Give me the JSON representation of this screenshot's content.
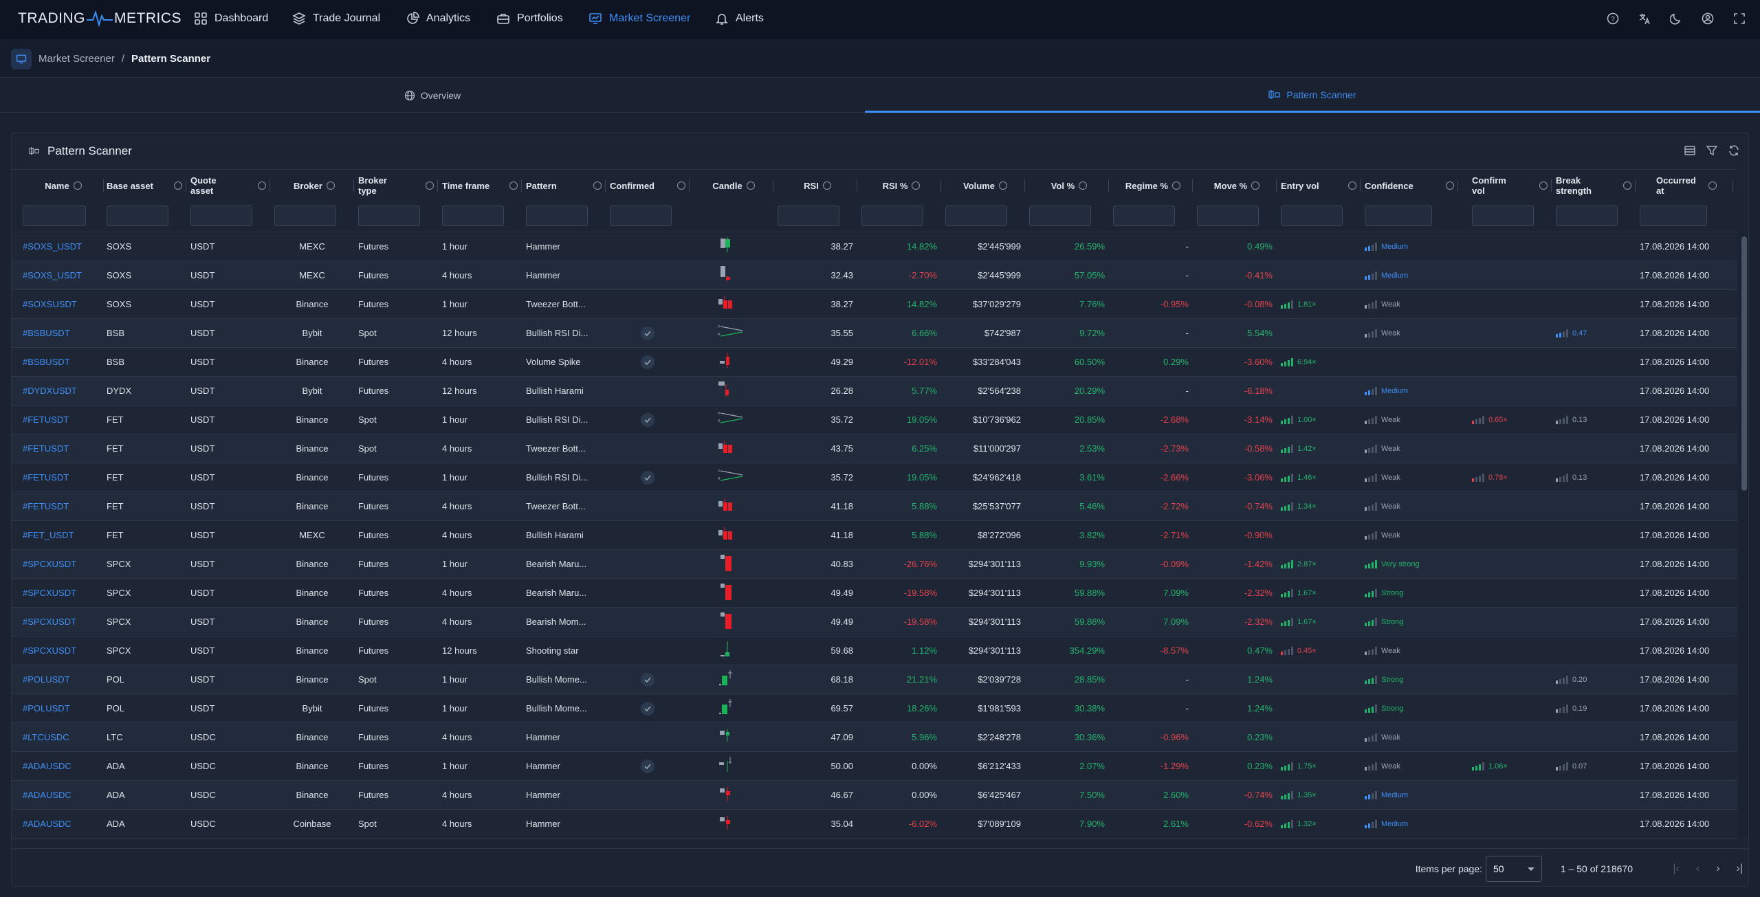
{
  "app": {
    "logo_left": "TRADING",
    "logo_right": "METRICS"
  },
  "nav": [
    {
      "label": "Dashboard",
      "icon": "dashboard-icon"
    },
    {
      "label": "Trade Journal",
      "icon": "layers-icon"
    },
    {
      "label": "Analytics",
      "icon": "pie-chart-icon"
    },
    {
      "label": "Portfolios",
      "icon": "portfolio-icon"
    },
    {
      "label": "Market Screener",
      "icon": "screener-icon",
      "active": true
    },
    {
      "label": "Alerts",
      "icon": "bell-icon"
    }
  ],
  "breadcrumb": {
    "parent": "Market Screener",
    "sep": "/",
    "current": "Pattern Scanner"
  },
  "tabs": [
    {
      "label": "Overview"
    },
    {
      "label": "Pattern Scanner",
      "active": true
    }
  ],
  "card": {
    "title": "Pattern Scanner"
  },
  "columns": [
    "Name",
    "Base asset",
    "Quote asset",
    "Broker",
    "Broker type",
    "Time frame",
    "Pattern",
    "Confirmed",
    "Candle",
    "RSI",
    "RSI %",
    "Volume",
    "Vol %",
    "Regime %",
    "Move %",
    "Entry vol",
    "Confidence",
    "Confirm vol",
    "Break strength",
    "Occurred at"
  ],
  "colors": {
    "accent": "#3d8ef5",
    "positive": "#22b36b",
    "negative": "#e6404a",
    "medium": "#3d8ef5"
  },
  "rows": [
    {
      "name": "#SOXS_USDT",
      "base": "SOXS",
      "quote": "USDT",
      "broker": "MEXC",
      "btype": "Futures",
      "tf": "1 hour",
      "pattern": "Hammer",
      "confirmed": false,
      "rsi": "38.27",
      "rsip": "14.82%",
      "rsip_s": "pos",
      "vol": "$2'445'999",
      "volp": "26.59%",
      "volp_s": "pos",
      "regime": "-",
      "regime_s": "",
      "move": "0.49%",
      "move_s": "pos",
      "entry": "",
      "entry_lvl": 0,
      "conf": "Medium",
      "conf_lvl": 2,
      "cvol": "",
      "cvol_lvl": 0,
      "brk": "",
      "brk_lvl": 0,
      "at": "17.08.2026 14:00",
      "candle": "hammer-up"
    },
    {
      "name": "#SOXS_USDT",
      "base": "SOXS",
      "quote": "USDT",
      "broker": "MEXC",
      "btype": "Futures",
      "tf": "4 hours",
      "pattern": "Hammer",
      "confirmed": false,
      "rsi": "32.43",
      "rsip": "-2.70%",
      "rsip_s": "neg",
      "vol": "$2'445'999",
      "volp": "57.05%",
      "volp_s": "pos",
      "regime": "-",
      "regime_s": "",
      "move": "-0.41%",
      "move_s": "neg",
      "entry": "",
      "entry_lvl": 0,
      "conf": "Medium",
      "conf_lvl": 2,
      "cvol": "",
      "cvol_lvl": 0,
      "brk": "",
      "brk_lvl": 0,
      "at": "17.08.2026 14:00",
      "candle": "hammer-down"
    },
    {
      "name": "#SOXSUSDT",
      "base": "SOXS",
      "quote": "USDT",
      "broker": "Binance",
      "btype": "Futures",
      "tf": "1 hour",
      "pattern": "Tweezer Bott...",
      "confirmed": false,
      "rsi": "38.27",
      "rsip": "14.82%",
      "rsip_s": "pos",
      "vol": "$37'029'279",
      "volp": "7.76%",
      "volp_s": "pos",
      "regime": "-0.95%",
      "regime_s": "neg",
      "move": "-0.08%",
      "move_s": "neg",
      "entry": "1.81×",
      "entry_lvl": 3,
      "conf": "Weak",
      "conf_lvl": 1,
      "cvol": "",
      "cvol_lvl": 0,
      "brk": "",
      "brk_lvl": 0,
      "at": "17.08.2026 14:00",
      "candle": "tweezer"
    },
    {
      "name": "#BSBUSDT",
      "base": "BSB",
      "quote": "USDT",
      "broker": "Bybit",
      "btype": "Spot",
      "tf": "12 hours",
      "pattern": "Bullish RSI Di...",
      "confirmed": true,
      "rsi": "35.55",
      "rsip": "6.66%",
      "rsip_s": "pos",
      "vol": "$742'987",
      "volp": "9.72%",
      "volp_s": "pos",
      "regime": "-",
      "regime_s": "",
      "move": "5.54%",
      "move_s": "pos",
      "entry": "",
      "entry_lvl": 0,
      "conf": "Weak",
      "conf_lvl": 1,
      "cvol": "",
      "cvol_lvl": 0,
      "brk": "0.47",
      "brk_lvl": 2,
      "at": "17.08.2026 14:00",
      "candle": "divergence"
    },
    {
      "name": "#BSBUSDT",
      "base": "BSB",
      "quote": "USDT",
      "broker": "Binance",
      "btype": "Futures",
      "tf": "4 hours",
      "pattern": "Volume Spike",
      "confirmed": true,
      "rsi": "49.29",
      "rsip": "-12.01%",
      "rsip_s": "neg",
      "vol": "$33'284'043",
      "volp": "60.50%",
      "volp_s": "pos",
      "regime": "0.29%",
      "regime_s": "pos",
      "move": "-3.60%",
      "move_s": "neg",
      "entry": "6.94×",
      "entry_lvl": 4,
      "conf": "",
      "conf_lvl": 0,
      "cvol": "",
      "cvol_lvl": 0,
      "brk": "",
      "brk_lvl": 0,
      "at": "17.08.2026 14:00",
      "candle": "spike"
    },
    {
      "name": "#DYDXUSDT",
      "base": "DYDX",
      "quote": "USDT",
      "broker": "Bybit",
      "btype": "Futures",
      "tf": "12 hours",
      "pattern": "Bullish Harami",
      "confirmed": false,
      "rsi": "26.28",
      "rsip": "5.77%",
      "rsip_s": "pos",
      "vol": "$2'564'238",
      "volp": "20.29%",
      "volp_s": "pos",
      "regime": "-",
      "regime_s": "",
      "move": "-6.18%",
      "move_s": "neg",
      "entry": "",
      "entry_lvl": 0,
      "conf": "Medium",
      "conf_lvl": 2,
      "cvol": "",
      "cvol_lvl": 0,
      "brk": "",
      "brk_lvl": 0,
      "at": "17.08.2026 14:00",
      "candle": "harami"
    },
    {
      "name": "#FETUSDT",
      "base": "FET",
      "quote": "USDT",
      "broker": "Binance",
      "btype": "Spot",
      "tf": "1 hour",
      "pattern": "Bullish RSI Di...",
      "confirmed": true,
      "rsi": "35.72",
      "rsip": "19.05%",
      "rsip_s": "pos",
      "vol": "$10'736'962",
      "volp": "20.85%",
      "volp_s": "pos",
      "regime": "-2.68%",
      "regime_s": "neg",
      "move": "-3.14%",
      "move_s": "neg",
      "entry": "1.00×",
      "entry_lvl": 3,
      "conf": "Weak",
      "conf_lvl": 1,
      "cvol": "0.65×",
      "cvol_lvl": 1,
      "brk": "0.13",
      "brk_lvl": 1,
      "at": "17.08.2026 14:00",
      "candle": "divergence"
    },
    {
      "name": "#FETUSDT",
      "base": "FET",
      "quote": "USDT",
      "broker": "Binance",
      "btype": "Spot",
      "tf": "4 hours",
      "pattern": "Tweezer Bott...",
      "confirmed": false,
      "rsi": "43.75",
      "rsip": "6.25%",
      "rsip_s": "pos",
      "vol": "$11'000'297",
      "volp": "2.53%",
      "volp_s": "pos",
      "regime": "-2.73%",
      "regime_s": "neg",
      "move": "-0.58%",
      "move_s": "neg",
      "entry": "1.42×",
      "entry_lvl": 3,
      "conf": "Weak",
      "conf_lvl": 1,
      "cvol": "",
      "cvol_lvl": 0,
      "brk": "",
      "brk_lvl": 0,
      "at": "17.08.2026 14:00",
      "candle": "tweezer"
    },
    {
      "name": "#FETUSDT",
      "base": "FET",
      "quote": "USDT",
      "broker": "Binance",
      "btype": "Futures",
      "tf": "1 hour",
      "pattern": "Bullish RSI Di...",
      "confirmed": true,
      "rsi": "35.72",
      "rsip": "19.05%",
      "rsip_s": "pos",
      "vol": "$24'962'418",
      "volp": "3.61%",
      "volp_s": "pos",
      "regime": "-2.66%",
      "regime_s": "neg",
      "move": "-3.06%",
      "move_s": "neg",
      "entry": "1.46×",
      "entry_lvl": 3,
      "conf": "Weak",
      "conf_lvl": 1,
      "cvol": "0.78×",
      "cvol_lvl": 1,
      "brk": "0.13",
      "brk_lvl": 1,
      "at": "17.08.2026 14:00",
      "candle": "divergence"
    },
    {
      "name": "#FETUSDT",
      "base": "FET",
      "quote": "USDT",
      "broker": "Binance",
      "btype": "Futures",
      "tf": "4 hours",
      "pattern": "Tweezer Bott...",
      "confirmed": false,
      "rsi": "41.18",
      "rsip": "5.88%",
      "rsip_s": "pos",
      "vol": "$25'537'077",
      "volp": "5.46%",
      "volp_s": "pos",
      "regime": "-2.72%",
      "regime_s": "neg",
      "move": "-0.74%",
      "move_s": "neg",
      "entry": "1.34×",
      "entry_lvl": 3,
      "conf": "Weak",
      "conf_lvl": 1,
      "cvol": "",
      "cvol_lvl": 0,
      "brk": "",
      "brk_lvl": 0,
      "at": "17.08.2026 14:00",
      "candle": "tweezer"
    },
    {
      "name": "#FET_USDT",
      "base": "FET",
      "quote": "USDT",
      "broker": "MEXC",
      "btype": "Futures",
      "tf": "4 hours",
      "pattern": "Bullish Harami",
      "confirmed": false,
      "rsi": "41.18",
      "rsip": "5.88%",
      "rsip_s": "pos",
      "vol": "$8'272'096",
      "volp": "3.82%",
      "volp_s": "pos",
      "regime": "-2.71%",
      "regime_s": "neg",
      "move": "-0.90%",
      "move_s": "neg",
      "entry": "",
      "entry_lvl": 0,
      "conf": "Weak",
      "conf_lvl": 1,
      "cvol": "",
      "cvol_lvl": 0,
      "brk": "",
      "brk_lvl": 0,
      "at": "17.08.2026 14:00",
      "candle": "tweezer"
    },
    {
      "name": "#SPCXUSDT",
      "base": "SPCX",
      "quote": "USDT",
      "broker": "Binance",
      "btype": "Futures",
      "tf": "1 hour",
      "pattern": "Bearish Maru...",
      "confirmed": false,
      "rsi": "40.83",
      "rsip": "-26.76%",
      "rsip_s": "neg",
      "vol": "$294'301'113",
      "volp": "9.93%",
      "volp_s": "pos",
      "regime": "-0.09%",
      "regime_s": "neg",
      "move": "-1.42%",
      "move_s": "neg",
      "entry": "2.87×",
      "entry_lvl": 4,
      "conf": "Very strong",
      "conf_lvl": 4,
      "cvol": "",
      "cvol_lvl": 0,
      "brk": "",
      "brk_lvl": 0,
      "at": "17.08.2026 14:00",
      "candle": "marubozu"
    },
    {
      "name": "#SPCXUSDT",
      "base": "SPCX",
      "quote": "USDT",
      "broker": "Binance",
      "btype": "Futures",
      "tf": "4 hours",
      "pattern": "Bearish Maru...",
      "confirmed": false,
      "rsi": "49.49",
      "rsip": "-19.58%",
      "rsip_s": "neg",
      "vol": "$294'301'113",
      "volp": "59.88%",
      "volp_s": "pos",
      "regime": "7.09%",
      "regime_s": "pos",
      "move": "-2.32%",
      "move_s": "neg",
      "entry": "1.67×",
      "entry_lvl": 3,
      "conf": "Strong",
      "conf_lvl": 3,
      "cvol": "",
      "cvol_lvl": 0,
      "brk": "",
      "brk_lvl": 0,
      "at": "17.08.2026 14:00",
      "candle": "marubozu"
    },
    {
      "name": "#SPCXUSDT",
      "base": "SPCX",
      "quote": "USDT",
      "broker": "Binance",
      "btype": "Futures",
      "tf": "4 hours",
      "pattern": "Bearish Mom...",
      "confirmed": false,
      "rsi": "49.49",
      "rsip": "-19.58%",
      "rsip_s": "neg",
      "vol": "$294'301'113",
      "volp": "59.88%",
      "volp_s": "pos",
      "regime": "7.09%",
      "regime_s": "pos",
      "move": "-2.32%",
      "move_s": "neg",
      "entry": "1.67×",
      "entry_lvl": 3,
      "conf": "Strong",
      "conf_lvl": 3,
      "cvol": "",
      "cvol_lvl": 0,
      "brk": "",
      "brk_lvl": 0,
      "at": "17.08.2026 14:00",
      "candle": "marubozu"
    },
    {
      "name": "#SPCXUSDT",
      "base": "SPCX",
      "quote": "USDT",
      "broker": "Binance",
      "btype": "Futures",
      "tf": "12 hours",
      "pattern": "Shooting star",
      "confirmed": false,
      "rsi": "59.68",
      "rsip": "1.12%",
      "rsip_s": "pos",
      "vol": "$294'301'113",
      "volp": "354.29%",
      "volp_s": "pos",
      "regime": "-8.57%",
      "regime_s": "neg",
      "move": "0.47%",
      "move_s": "pos",
      "entry": "0.45×",
      "entry_lvl": 1,
      "entry_neg": true,
      "conf": "Weak",
      "conf_lvl": 1,
      "cvol": "",
      "cvol_lvl": 0,
      "brk": "",
      "brk_lvl": 0,
      "at": "17.08.2026 14:00",
      "candle": "star"
    },
    {
      "name": "#POLUSDT",
      "base": "POL",
      "quote": "USDT",
      "broker": "Binance",
      "btype": "Spot",
      "tf": "1 hour",
      "pattern": "Bullish Mome...",
      "confirmed": true,
      "rsi": "68.18",
      "rsip": "21.21%",
      "rsip_s": "pos",
      "vol": "$2'039'728",
      "volp": "28.85%",
      "volp_s": "pos",
      "regime": "-",
      "regime_s": "",
      "move": "1.24%",
      "move_s": "pos",
      "entry": "",
      "entry_lvl": 0,
      "conf": "Strong",
      "conf_lvl": 3,
      "cvol": "",
      "cvol_lvl": 0,
      "brk": "0.20",
      "brk_lvl": 1,
      "at": "17.08.2026 14:00",
      "candle": "momentum"
    },
    {
      "name": "#POLUSDT",
      "base": "POL",
      "quote": "USDT",
      "broker": "Bybit",
      "btype": "Futures",
      "tf": "1 hour",
      "pattern": "Bullish Mome...",
      "confirmed": true,
      "rsi": "69.57",
      "rsip": "18.26%",
      "rsip_s": "pos",
      "vol": "$1'981'593",
      "volp": "30.38%",
      "volp_s": "pos",
      "regime": "-",
      "regime_s": "",
      "move": "1.24%",
      "move_s": "pos",
      "entry": "",
      "entry_lvl": 0,
      "conf": "Strong",
      "conf_lvl": 3,
      "cvol": "",
      "cvol_lvl": 0,
      "brk": "0.19",
      "brk_lvl": 1,
      "at": "17.08.2026 14:00",
      "candle": "momentum"
    },
    {
      "name": "#LTCUSDC",
      "base": "LTC",
      "quote": "USDC",
      "broker": "Binance",
      "btype": "Futures",
      "tf": "4 hours",
      "pattern": "Hammer",
      "confirmed": false,
      "rsi": "47.09",
      "rsip": "5.96%",
      "rsip_s": "pos",
      "vol": "$2'248'278",
      "volp": "30.36%",
      "volp_s": "pos",
      "regime": "-0.96%",
      "regime_s": "neg",
      "move": "0.23%",
      "move_s": "pos",
      "entry": "",
      "entry_lvl": 0,
      "conf": "Weak",
      "conf_lvl": 1,
      "cvol": "",
      "cvol_lvl": 0,
      "brk": "",
      "brk_lvl": 0,
      "at": "17.08.2026 14:00",
      "candle": "small-up"
    },
    {
      "name": "#ADAUSDC",
      "base": "ADA",
      "quote": "USDC",
      "broker": "Binance",
      "btype": "Futures",
      "tf": "1 hour",
      "pattern": "Hammer",
      "confirmed": true,
      "rsi": "50.00",
      "rsip": "0.00%",
      "rsip_s": "",
      "vol": "$6'212'433",
      "volp": "2.07%",
      "volp_s": "pos",
      "regime": "-1.29%",
      "regime_s": "neg",
      "move": "0.23%",
      "move_s": "pos",
      "entry": "1.75×",
      "entry_lvl": 3,
      "conf": "Weak",
      "conf_lvl": 1,
      "cvol": "1.06×",
      "cvol_lvl": 3,
      "brk": "0.07",
      "brk_lvl": 1,
      "at": "17.08.2026 14:00",
      "candle": "doji"
    },
    {
      "name": "#ADAUSDC",
      "base": "ADA",
      "quote": "USDC",
      "broker": "Binance",
      "btype": "Futures",
      "tf": "4 hours",
      "pattern": "Hammer",
      "confirmed": false,
      "rsi": "46.67",
      "rsip": "0.00%",
      "rsip_s": "",
      "vol": "$6'425'467",
      "volp": "7.50%",
      "volp_s": "pos",
      "regime": "2.60%",
      "regime_s": "pos",
      "move": "-0.74%",
      "move_s": "neg",
      "entry": "1.35×",
      "entry_lvl": 3,
      "conf": "Medium",
      "conf_lvl": 2,
      "cvol": "",
      "cvol_lvl": 0,
      "brk": "",
      "brk_lvl": 0,
      "at": "17.08.2026 14:00",
      "candle": "small-down"
    },
    {
      "name": "#ADAUSDC",
      "base": "ADA",
      "quote": "USDC",
      "broker": "Coinbase",
      "btype": "Spot",
      "tf": "4 hours",
      "pattern": "Hammer",
      "confirmed": false,
      "rsi": "35.04",
      "rsip": "-6.02%",
      "rsip_s": "neg",
      "vol": "$7'089'109",
      "volp": "7.90%",
      "volp_s": "pos",
      "regime": "2.61%",
      "regime_s": "pos",
      "move": "-0.62%",
      "move_s": "neg",
      "entry": "1.32×",
      "entry_lvl": 3,
      "conf": "Medium",
      "conf_lvl": 2,
      "cvol": "",
      "cvol_lvl": 0,
      "brk": "",
      "brk_lvl": 0,
      "at": "17.08.2026 14:00",
      "candle": "small-down"
    }
  ],
  "pagination": {
    "items_per_page_label": "Items per page:",
    "items_per_page": "50",
    "range": "1 – 50 of 218670"
  }
}
